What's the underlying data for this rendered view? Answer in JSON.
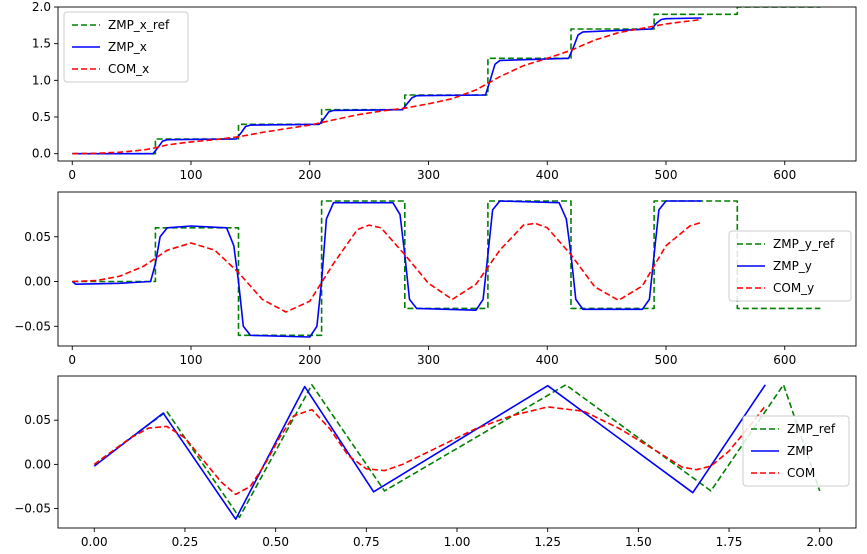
{
  "chart_data": [
    {
      "type": "line",
      "xlabel": "",
      "ylabel": "",
      "xlim": [
        -12,
        660
      ],
      "ylim": [
        -0.1,
        2.0
      ],
      "xticks": [
        0,
        100,
        200,
        300,
        400,
        500,
        600
      ],
      "xtick_labels": [
        "0",
        "100",
        "200",
        "300",
        "400",
        "500",
        "600"
      ],
      "yticks": [
        0.0,
        0.5,
        1.0,
        1.5,
        2.0
      ],
      "ytick_labels": [
        "0.0",
        "0.5",
        "1.0",
        "1.5",
        "2.0"
      ],
      "legend": "top-left",
      "colors": {
        "ref": "#008000",
        "zmp": "#0000ff",
        "com": "#ff0000"
      },
      "series": [
        {
          "name": "ZMP_x_ref",
          "color": "#008000",
          "style": "dashed",
          "x": [
            0,
            70,
            70,
            140,
            140,
            210,
            210,
            280,
            280,
            350,
            350,
            420,
            420,
            490,
            490,
            560,
            560,
            630
          ],
          "y": [
            0,
            0,
            0.2,
            0.2,
            0.4,
            0.4,
            0.6,
            0.6,
            0.8,
            0.8,
            1.3,
            1.3,
            1.7,
            1.7,
            1.9,
            1.9,
            2.0,
            2.0
          ]
        },
        {
          "name": "ZMP_x",
          "color": "#0000ff",
          "style": "solid",
          "x": [
            0,
            68,
            72,
            76,
            80,
            138,
            142,
            146,
            150,
            208,
            212,
            216,
            220,
            278,
            282,
            286,
            290,
            348,
            352,
            356,
            360,
            418,
            422,
            426,
            430,
            488,
            492,
            496,
            500,
            530
          ],
          "y": [
            0,
            0,
            0.08,
            0.17,
            0.19,
            0.2,
            0.28,
            0.37,
            0.39,
            0.4,
            0.48,
            0.57,
            0.59,
            0.6,
            0.68,
            0.76,
            0.79,
            0.8,
            1.0,
            1.22,
            1.27,
            1.3,
            1.45,
            1.62,
            1.66,
            1.7,
            1.78,
            1.83,
            1.84,
            1.85
          ]
        },
        {
          "name": "COM_x",
          "color": "#ff0000",
          "style": "dashed",
          "x": [
            0,
            20,
            40,
            60,
            70,
            80,
            100,
            120,
            140,
            160,
            180,
            200,
            220,
            240,
            260,
            280,
            300,
            320,
            340,
            360,
            380,
            400,
            420,
            440,
            460,
            480,
            500,
            530
          ],
          "y": [
            0,
            0.005,
            0.02,
            0.05,
            0.08,
            0.12,
            0.16,
            0.19,
            0.23,
            0.29,
            0.34,
            0.39,
            0.46,
            0.53,
            0.58,
            0.62,
            0.68,
            0.75,
            0.87,
            1.05,
            1.2,
            1.3,
            1.41,
            1.55,
            1.65,
            1.71,
            1.77,
            1.83
          ]
        }
      ]
    },
    {
      "type": "line",
      "xlabel": "",
      "ylabel": "",
      "xlim": [
        -12,
        660
      ],
      "ylim": [
        -0.072,
        0.1
      ],
      "xticks": [
        0,
        100,
        200,
        300,
        400,
        500,
        600
      ],
      "xtick_labels": [
        "0",
        "100",
        "200",
        "300",
        "400",
        "500",
        "600"
      ],
      "yticks": [
        -0.05,
        0.0,
        0.05
      ],
      "ytick_labels": [
        "−0.05",
        "0.00",
        "0.05"
      ],
      "legend": "right",
      "series": [
        {
          "name": "ZMP_y_ref",
          "color": "#008000",
          "style": "dashed",
          "x": [
            0,
            70,
            70,
            140,
            140,
            210,
            210,
            280,
            280,
            350,
            350,
            420,
            420,
            490,
            490,
            560,
            560,
            630
          ],
          "y": [
            0,
            0,
            0.06,
            0.06,
            -0.06,
            -0.06,
            0.09,
            0.09,
            -0.03,
            -0.03,
            0.09,
            0.09,
            -0.03,
            -0.03,
            0.09,
            0.09,
            -0.03,
            -0.03
          ]
        },
        {
          "name": "ZMP_y",
          "color": "#0000ff",
          "style": "solid",
          "x": [
            0,
            3,
            40,
            66,
            70,
            74,
            80,
            100,
            130,
            136,
            140,
            144,
            150,
            200,
            206,
            210,
            214,
            220,
            270,
            276,
            280,
            284,
            290,
            340,
            346,
            350,
            354,
            360,
            410,
            416,
            420,
            424,
            430,
            480,
            486,
            490,
            494,
            500,
            530
          ],
          "y": [
            0,
            -0.003,
            -0.002,
            0,
            0.02,
            0.05,
            0.06,
            0.062,
            0.06,
            0.04,
            0,
            -0.05,
            -0.06,
            -0.062,
            -0.05,
            0,
            0.07,
            0.088,
            0.088,
            0.075,
            0.03,
            -0.02,
            -0.03,
            -0.032,
            -0.02,
            0.03,
            0.08,
            0.09,
            0.088,
            0.07,
            0.03,
            -0.02,
            -0.031,
            -0.031,
            -0.02,
            0.03,
            0.08,
            0.09,
            0.09
          ]
        },
        {
          "name": "COM_y",
          "color": "#ff0000",
          "style": "dashed",
          "x": [
            0,
            20,
            40,
            60,
            80,
            100,
            120,
            140,
            160,
            180,
            200,
            220,
            240,
            250,
            260,
            280,
            300,
            320,
            340,
            360,
            380,
            390,
            400,
            420,
            440,
            460,
            480,
            500,
            520,
            530
          ],
          "y": [
            0,
            0.001,
            0.006,
            0.017,
            0.035,
            0.043,
            0.035,
            0.01,
            -0.02,
            -0.034,
            -0.022,
            0.02,
            0.058,
            0.063,
            0.06,
            0.03,
            -0.002,
            -0.02,
            -0.003,
            0.035,
            0.063,
            0.065,
            0.06,
            0.03,
            -0.006,
            -0.021,
            -0.005,
            0.04,
            0.062,
            0.066
          ]
        }
      ]
    },
    {
      "type": "line",
      "xlabel": "",
      "ylabel": "",
      "xlim": [
        -0.1,
        2.1
      ],
      "ylim": [
        -0.072,
        0.1
      ],
      "xticks": [
        0.0,
        0.25,
        0.5,
        0.75,
        1.0,
        1.25,
        1.5,
        1.75,
        2.0
      ],
      "xtick_labels": [
        "0.00",
        "0.25",
        "0.50",
        "0.75",
        "1.00",
        "1.25",
        "1.50",
        "1.75",
        "2.00"
      ],
      "yticks": [
        -0.05,
        0.0,
        0.05
      ],
      "ytick_labels": [
        "−0.05",
        "0.00",
        "0.05"
      ],
      "legend": "right",
      "series": [
        {
          "name": "ZMP_ref",
          "color": "#008000",
          "style": "dashed",
          "x": [
            0,
            0.2,
            0.4,
            0.6,
            0.8,
            1.3,
            1.7,
            1.9,
            2.0
          ],
          "y": [
            0,
            0.06,
            -0.06,
            0.09,
            -0.03,
            0.09,
            -0.03,
            0.09,
            -0.03
          ]
        },
        {
          "name": "ZMP",
          "color": "#0000ff",
          "style": "solid",
          "x": [
            0,
            0.19,
            0.39,
            0.58,
            0.77,
            1.25,
            1.65,
            1.85
          ],
          "y": [
            -0.002,
            0.058,
            -0.062,
            0.088,
            -0.031,
            0.089,
            -0.032,
            0.09
          ]
        },
        {
          "name": "COM",
          "color": "#ff0000",
          "style": "dashed",
          "x": [
            0,
            0.05,
            0.1,
            0.15,
            0.2,
            0.25,
            0.3,
            0.35,
            0.39,
            0.43,
            0.47,
            0.51,
            0.55,
            0.6,
            0.65,
            0.7,
            0.75,
            0.8,
            0.85,
            0.95,
            1.05,
            1.15,
            1.25,
            1.35,
            1.45,
            1.55,
            1.62,
            1.66,
            1.7,
            1.75,
            1.8,
            1.85
          ],
          "y": [
            0,
            0.015,
            0.03,
            0.041,
            0.043,
            0.03,
            0.005,
            -0.02,
            -0.034,
            -0.025,
            0.0,
            0.03,
            0.055,
            0.062,
            0.04,
            0.01,
            -0.005,
            -0.007,
            0.0,
            0.02,
            0.04,
            0.055,
            0.065,
            0.06,
            0.04,
            0.015,
            -0.003,
            -0.006,
            -0.002,
            0.015,
            0.04,
            0.066
          ]
        }
      ]
    }
  ]
}
